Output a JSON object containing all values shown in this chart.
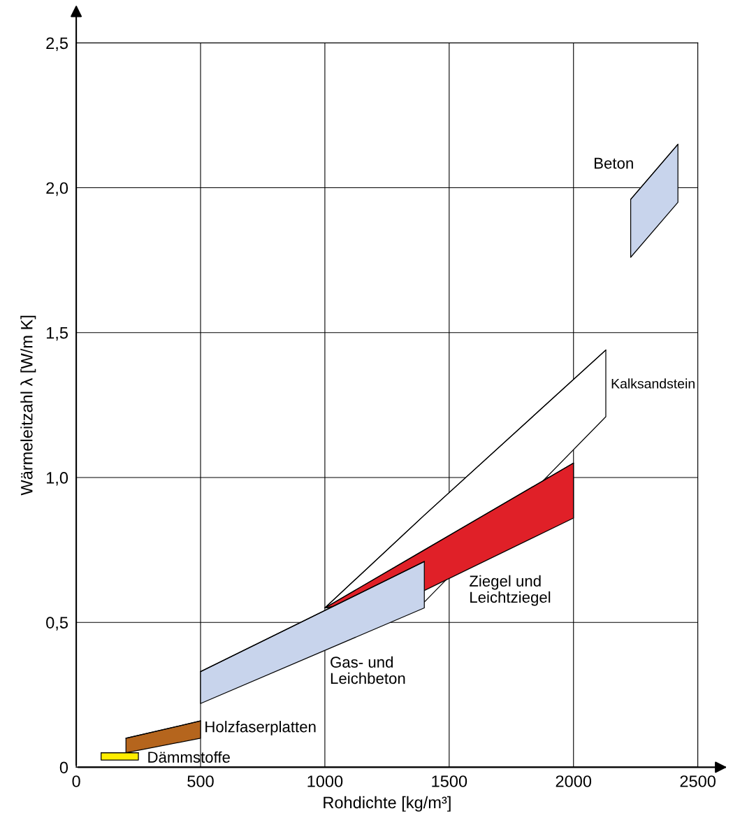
{
  "chart_data": {
    "type": "line",
    "xlabel": "Rohdichte [kg/m³]",
    "ylabel": "Wärmeleitzahl λ [W/m K]",
    "xlim": [
      0,
      2500
    ],
    "ylim": [
      0,
      2.5
    ],
    "xticks": [
      0,
      500,
      1000,
      1500,
      2000,
      2500
    ],
    "yticks": [
      {
        "value": 0,
        "label": "0"
      },
      {
        "value": 0.5,
        "label": "0,5"
      },
      {
        "value": 1.0,
        "label": "1,0"
      },
      {
        "value": 1.5,
        "label": "1,5"
      },
      {
        "value": 2.0,
        "label": "2,0"
      },
      {
        "value": 2.5,
        "label": "2,5"
      }
    ],
    "grid": true,
    "legend": false,
    "series": [
      {
        "name": "Kalksandstein",
        "color": "#000000",
        "colors": [
          "#ffffff",
          "#ffffff",
          "#ffffff"
        ],
        "x": [
          1000,
          1400,
          2130
        ],
        "values": [
          0.55,
          0.87,
          1.44
        ],
        "upper": [
          0.55,
          0.87,
          1.44
        ],
        "lower": [
          0.55,
          0.57,
          1.21
        ]
      },
      {
        "name": "Ziegel und\nLeichtziegel",
        "color": "#000000",
        "colors": [
          "#e02028",
          "#e02028",
          "#e02028"
        ],
        "x": [
          1000,
          1400,
          2000
        ],
        "values": [
          0.55,
          0.75,
          1.05
        ],
        "upper": [
          0.55,
          0.75,
          1.05
        ],
        "lower": [
          0.55,
          0.61,
          0.86
        ]
      },
      {
        "name": "Gas- und\nLeichbeton",
        "color": "#000000",
        "colors": [
          "#c8d4ec",
          "#c8d4ec"
        ],
        "x": [
          500,
          1400
        ],
        "values": [
          0.33,
          0.71
        ],
        "upper": [
          0.33,
          0.71
        ],
        "lower": [
          0.22,
          0.55
        ]
      },
      {
        "name": "Beton",
        "color": "#000000",
        "colors": [
          "#c8d4ec",
          "#c8d4ec"
        ],
        "x": [
          2230,
          2420
        ],
        "values": [
          1.96,
          2.15
        ],
        "upper": [
          1.96,
          2.15
        ],
        "lower": [
          1.76,
          1.95
        ]
      },
      {
        "name": "Holzfaserplatten",
        "color": "#000000",
        "colors": [
          "#b5651d",
          "#b5651d"
        ],
        "x": [
          200,
          500
        ],
        "values": [
          0.1,
          0.16
        ],
        "upper": [
          0.1,
          0.16
        ],
        "lower": [
          0.05,
          0.1
        ]
      },
      {
        "name": "Dämmstoffe",
        "color": "#000000",
        "colors": [
          "#ffee00",
          "#ffee00"
        ],
        "x": [
          100,
          250
        ],
        "values": [
          0.05,
          0.05
        ],
        "upper": [
          0.05,
          0.05
        ],
        "lower": [
          0.025,
          0.025
        ]
      }
    ]
  }
}
